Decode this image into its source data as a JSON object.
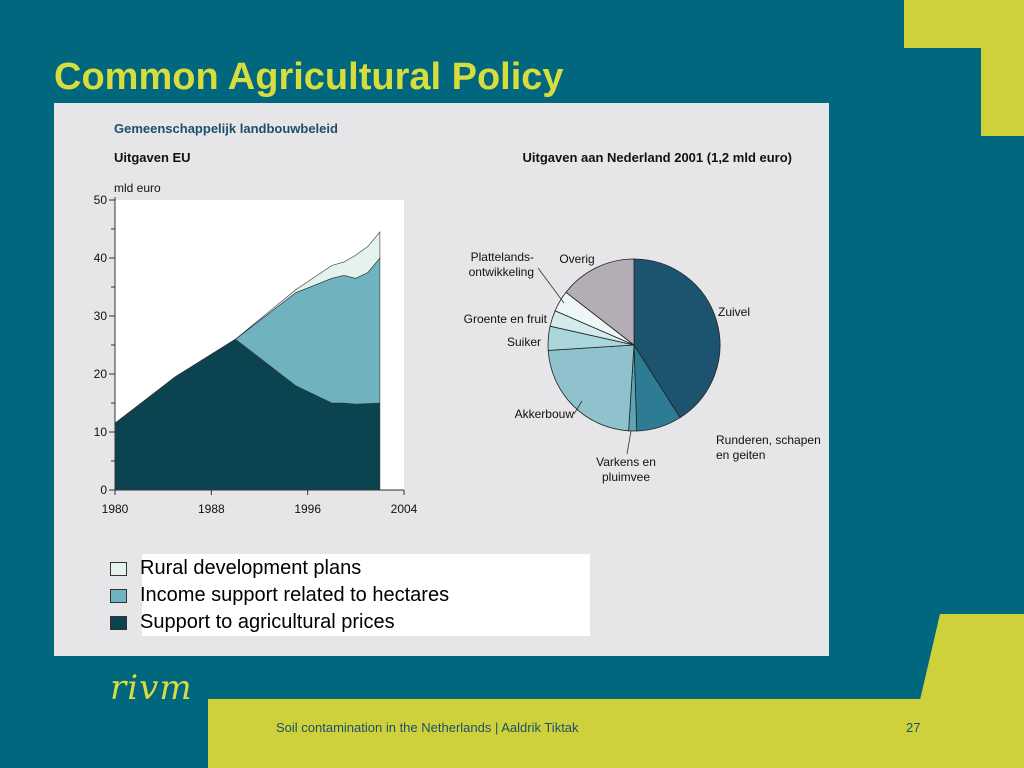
{
  "slide": {
    "title": "Common Agricultural Policy",
    "footer": "Soil contamination in the Netherlands | Aaldrik Tiktak",
    "page_number": "27",
    "logo_text": "rivm"
  },
  "colors": {
    "background": "#00677f",
    "accent": "#cfd13a",
    "title": "#d6dd3d",
    "dark_teal": "#0c4351",
    "mid_teal": "#6fb3c0",
    "pale_green": "#e5f3ee"
  },
  "figure": {
    "title": "Gemeenschappelijk landbouwbeleid"
  },
  "legend": [
    {
      "label": "Rural development plans",
      "color": "#e5f3ee"
    },
    {
      "label": "Income support related to hectares",
      "color": "#6fb3c0"
    },
    {
      "label": "Support to agricultural prices",
      "color": "#0c4351"
    }
  ],
  "chart_data": [
    {
      "type": "area",
      "title": "Uitgaven EU",
      "ylabel": "mld euro",
      "xlabel": "",
      "x_ticks": [
        1980,
        1988,
        1996,
        2004
      ],
      "y_ticks": [
        0,
        10,
        20,
        30,
        40,
        50
      ],
      "xlim": [
        1980,
        2004
      ],
      "ylim": [
        0,
        50
      ],
      "stacked": true,
      "x": [
        1980,
        1985,
        1990,
        1995,
        1998,
        1999,
        2000,
        2001,
        2002
      ],
      "series": [
        {
          "name": "Support to agricultural prices",
          "color": "#0c4351",
          "values": [
            11.5,
            19.5,
            26,
            18,
            15,
            15,
            14.8,
            14.9,
            15
          ]
        },
        {
          "name": "Income support related to hectares",
          "color": "#6fb3c0",
          "values": [
            0,
            0,
            0,
            16,
            21.5,
            22,
            21.7,
            22.6,
            25
          ]
        },
        {
          "name": "Rural development plans",
          "color": "#e5f3ee",
          "values": [
            0,
            0,
            0,
            0.5,
            2.2,
            2.3,
            4,
            4.5,
            4.5
          ]
        }
      ]
    },
    {
      "type": "pie",
      "title": "Uitgaven aan Nederland 2001 (1,2 mld euro)",
      "slices": [
        {
          "label": "Zuivel",
          "value": 41,
          "color": "#1c5470"
        },
        {
          "label": "Runderen, schapen en geiten",
          "value": 8.5,
          "color": "#2e7c93"
        },
        {
          "label": "Varkens en pluimvee",
          "value": 1.5,
          "color": "#5ea4b5"
        },
        {
          "label": "Akkerbouw",
          "value": 23,
          "color": "#8fc2cc"
        },
        {
          "label": "Suiker",
          "value": 4.5,
          "color": "#a9d7dc"
        },
        {
          "label": "Groente en fruit",
          "value": 3,
          "color": "#d3ebee"
        },
        {
          "label": "Plattelands-ontwikkeling",
          "value": 4,
          "color": "#eef6f7"
        },
        {
          "label": "Overig",
          "value": 14.5,
          "color": "#b3adb5"
        }
      ]
    }
  ]
}
